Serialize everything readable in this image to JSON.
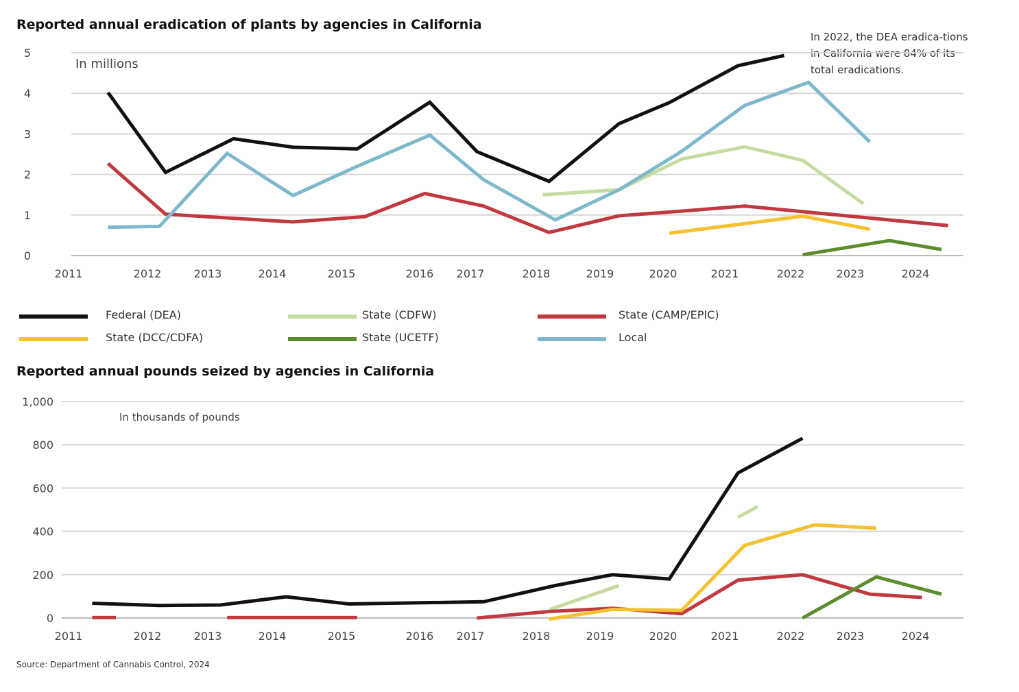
{
  "chart_data": [
    {
      "type": "line",
      "title": "Reported annual eradication of plants by agencies in California",
      "unit_label": "In millions",
      "annotation": "In 2022, the DEA eradica-tions in California were 84% of its total eradications.",
      "xlim": [
        2011,
        2024.3
      ],
      "ylim": [
        0,
        5
      ],
      "x_ticks": [
        "2011",
        "2012",
        "2013",
        "2014",
        "2015",
        "2016",
        "2017",
        "2018",
        "2019",
        "2020",
        "2021",
        "2022",
        "2023",
        "2024"
      ],
      "y_ticks": [
        "0",
        "1",
        "2",
        "3",
        "4",
        "5"
      ],
      "grid": true,
      "series": [
        {
          "name": "Federal (DEA)",
          "color": "#111111",
          "points": [
            [
              2011.5,
              4.02
            ],
            [
              2012.3,
              2.05
            ],
            [
              2013.4,
              2.88
            ],
            [
              2014.3,
              2.67
            ],
            [
              2015.2,
              2.63
            ],
            [
              2016.2,
              3.78
            ],
            [
              2017.1,
              2.56
            ],
            [
              2018.2,
              1.83
            ],
            [
              2019.3,
              3.25
            ],
            [
              2020.1,
              3.77
            ],
            [
              2021.2,
              4.68
            ],
            [
              2021.9,
              4.93
            ]
          ]
        },
        {
          "name": "State (CDFW)",
          "color": "#c5dca0",
          "points": [
            [
              2018.1,
              1.5
            ],
            [
              2019.3,
              1.62
            ],
            [
              2020.3,
              2.38
            ],
            [
              2021.3,
              2.68
            ],
            [
              2022.2,
              2.35
            ],
            [
              2023.2,
              1.28
            ]
          ]
        },
        {
          "name": "State (CAMP/EPIC)",
          "color": "#c0393f",
          "points": [
            [
              2011.5,
              2.27
            ],
            [
              2012.3,
              1.02
            ],
            [
              2014.3,
              0.83
            ],
            [
              2015.3,
              0.96
            ],
            [
              2016.1,
              1.53
            ],
            [
              2017.2,
              1.22
            ],
            [
              2018.2,
              0.57
            ],
            [
              2019.3,
              0.98
            ],
            [
              2020.5,
              1.12
            ],
            [
              2021.3,
              1.22
            ],
            [
              2024.5,
              0.74
            ]
          ]
        },
        {
          "name": "State (DCC/CDFA)",
          "color": "#f5c12e",
          "points": [
            [
              2020.1,
              0.55
            ],
            [
              2022.2,
              0.97
            ],
            [
              2023.3,
              0.65
            ]
          ]
        },
        {
          "name": "State (UCETF)",
          "color": "#5b8c2e",
          "points": [
            [
              2022.2,
              0.02
            ],
            [
              2023.6,
              0.37
            ],
            [
              2024.4,
              0.15
            ]
          ]
        },
        {
          "name": "Local",
          "color": "#7eb8cc",
          "points": [
            [
              2011.5,
              0.7
            ],
            [
              2012.2,
              0.72
            ],
            [
              2013.3,
              2.52
            ],
            [
              2014.3,
              1.48
            ],
            [
              2015.2,
              2.2
            ],
            [
              2016.2,
              2.97
            ],
            [
              2017.2,
              1.87
            ],
            [
              2018.3,
              0.88
            ],
            [
              2019.3,
              1.62
            ],
            [
              2020.3,
              2.57
            ],
            [
              2021.3,
              3.7
            ],
            [
              2022.3,
              4.27
            ],
            [
              2023.3,
              2.8
            ]
          ]
        }
      ]
    },
    {
      "type": "line",
      "title": "Reported annual pounds seized by agencies in California",
      "unit_label": "In thousands of pounds",
      "xlim": [
        2011,
        2024.3
      ],
      "ylim": [
        0,
        1000
      ],
      "x_ticks": [
        "2011",
        "2012",
        "2013",
        "2014",
        "2015",
        "2016",
        "2017",
        "2018",
        "2019",
        "2020",
        "2021",
        "2022",
        "2023",
        "2024"
      ],
      "y_ticks": [
        "0",
        "200",
        "400",
        "600",
        "800",
        "1,000"
      ],
      "grid": true,
      "series": [
        {
          "name": "Federal (DEA)",
          "color": "#111111",
          "segments": [
            [
              [
                2011.3,
                68
              ],
              [
                2012.2,
                58
              ],
              [
                2013.2,
                60
              ],
              [
                2014.2,
                98
              ],
              [
                2015.1,
                65
              ],
              [
                2017.2,
                75
              ],
              [
                2018.3,
                150
              ],
              [
                2019.2,
                200
              ],
              [
                2020.1,
                180
              ],
              [
                2021.2,
                670
              ],
              [
                2022.2,
                830
              ]
            ]
          ]
        },
        {
          "name": "State (CDFW)",
          "color": "#c5dca0",
          "segments": [
            [
              [
                2018.2,
                38
              ],
              [
                2019.3,
                150
              ]
            ],
            [
              [
                2021.2,
                465
              ],
              [
                2021.5,
                515
              ]
            ]
          ]
        },
        {
          "name": "State (CAMP/EPIC)",
          "color": "#c0393f",
          "segments": [
            [
              [
                2011.3,
                2
              ],
              [
                2011.6,
                2
              ]
            ],
            [
              [
                2013.3,
                2
              ],
              [
                2015.2,
                2
              ]
            ],
            [
              [
                2017.1,
                0
              ],
              [
                2018.2,
                30
              ],
              [
                2019.2,
                45
              ],
              [
                2020.3,
                20
              ],
              [
                2021.2,
                175
              ],
              [
                2022.2,
                200
              ],
              [
                2023.3,
                110
              ],
              [
                2024.1,
                95
              ]
            ]
          ]
        },
        {
          "name": "State (DCC/CDFA)",
          "color": "#f5c12e",
          "segments": [
            [
              [
                2018.2,
                -5
              ],
              [
                2019.2,
                40
              ],
              [
                2020.3,
                35
              ],
              [
                2021.3,
                335
              ],
              [
                2022.4,
                430
              ],
              [
                2023.4,
                415
              ]
            ]
          ]
        },
        {
          "name": "State (UCETF)",
          "color": "#5b8c2e",
          "segments": [
            [
              [
                2022.2,
                0
              ],
              [
                2023.4,
                190
              ],
              [
                2024.4,
                110
              ]
            ]
          ]
        }
      ]
    }
  ],
  "legend": [
    {
      "label": "Federal (DEA)",
      "color": "#111111"
    },
    {
      "label": "State (CDFW)",
      "color": "#c5dca0"
    },
    {
      "label": "State (CAMP/EPIC)",
      "color": "#c0393f"
    },
    {
      "label": "State (DCC/CDFA)",
      "color": "#f5c12e"
    },
    {
      "label": "State (UCETF)",
      "color": "#5b8c2e"
    },
    {
      "label": "Local",
      "color": "#7eb8cc"
    }
  ],
  "source": "Source: Department of Cannabis Control, 2024"
}
